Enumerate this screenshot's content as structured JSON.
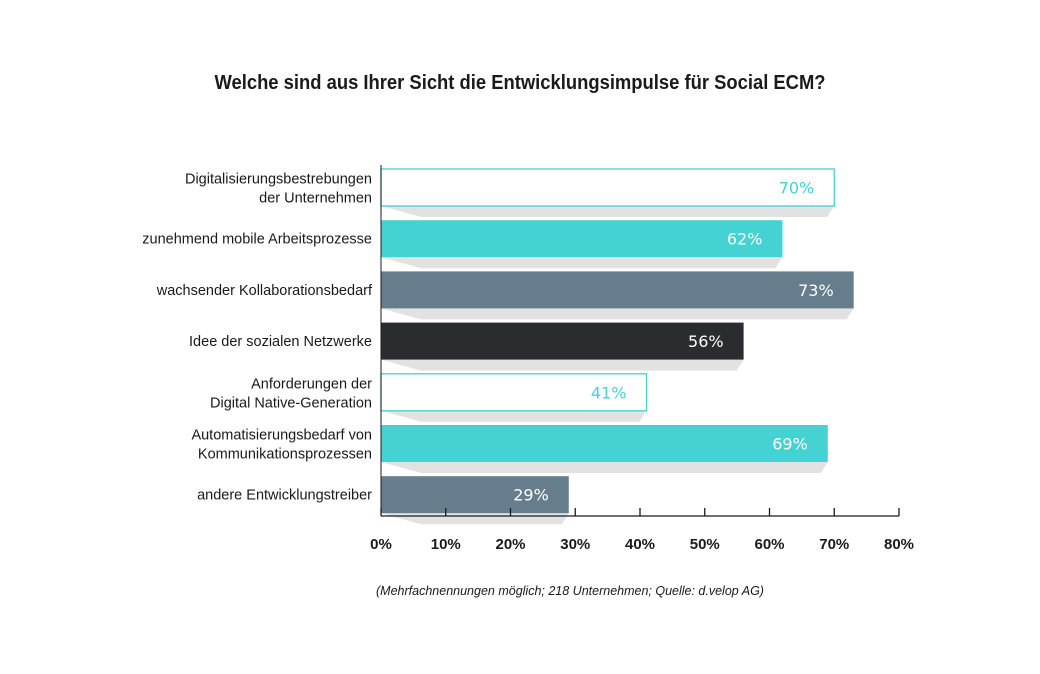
{
  "chart_data": {
    "type": "bar",
    "orientation": "horizontal",
    "title": "Welche sind aus Ihrer Sicht die Entwicklungsimpulse für Social ECM?",
    "categories": [
      [
        "Digitalisierungsbestrebungen",
        "der Unternehmen"
      ],
      [
        "zunehmend mobile Arbeitsprozesse"
      ],
      [
        "wachsender Kollaborationsbedarf"
      ],
      [
        "Idee der sozialen Netzwerke"
      ],
      [
        "Anforderungen der",
        "Digital Native-Generation"
      ],
      [
        "Automatisierungsbedarf von",
        "Kommunikationsprozessen"
      ],
      [
        "andere Entwicklungstreiber"
      ]
    ],
    "values": [
      70,
      62,
      73,
      56,
      41,
      69,
      29
    ],
    "value_labels": [
      "70%",
      "62%",
      "73%",
      "56%",
      "41%",
      "69%",
      "29%"
    ],
    "bar_styles": [
      "outline",
      "teal",
      "slate",
      "dark",
      "outline",
      "teal",
      "slate"
    ],
    "xlim": [
      0,
      80
    ],
    "xticks": [
      0,
      10,
      20,
      30,
      40,
      50,
      60,
      70,
      80
    ],
    "xtick_labels": [
      "0%",
      "10%",
      "20%",
      "30%",
      "40%",
      "50%",
      "60%",
      "70%",
      "80%"
    ],
    "grid": false,
    "legend": "none",
    "colors": {
      "teal": "#45d2d2",
      "slate": "#657d8c",
      "dark": "#2b2c30",
      "shadow": "#e2e2e2",
      "axis": "#1a1a1a"
    }
  },
  "footnote": "(Mehrfachnennungen möglich; 218 Unternehmen; Quelle: d.velop AG)"
}
